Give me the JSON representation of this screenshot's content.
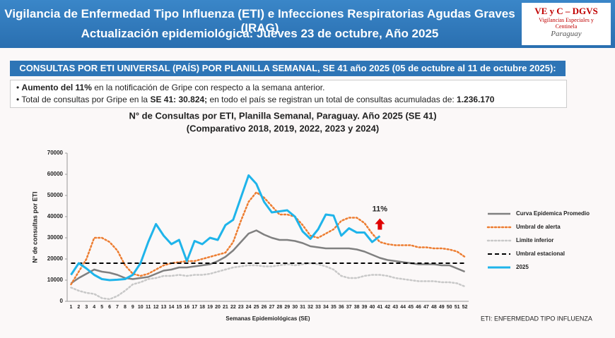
{
  "header": {
    "title": "Vigilancia de Enfermedad Tipo Influenza (ETI) e Infecciones Respiratorias Agudas Graves (IRAG)",
    "subtitle": "Actualización epidemiológica: Jueves 23 de octubre, Año 2025",
    "logo": [
      "VE y C – DGVS",
      "Vigilancias Especiales y",
      "Centinela",
      "Paraguay"
    ]
  },
  "banner": "CONSULTAS POR ETI UNIVERSAL (PAÍS) POR PLANILLA SEMANAL, SE 41 año 2025 (05 de octubre al 11 de octubre 2025):",
  "bullets": [
    [
      {
        "text": "Aumento del 11%",
        "bold": true
      },
      {
        "text": " en la notificación de Gripe con respecto a la semana anterior.",
        "bold": false
      }
    ],
    [
      {
        "text": "Total de consultas por Gripe en la ",
        "bold": false
      },
      {
        "text": "SE 41: 30.824;",
        "bold": true
      },
      {
        "text": " en todo el país se registran un total de consultas acumuladas de: ",
        "bold": false
      },
      {
        "text": "1.236.170",
        "bold": true
      }
    ]
  ],
  "chart_data": {
    "type": "line",
    "title": "N° de Consultas por ETI, Planilla Semanal, Paraguay. Año 2025  (SE 41)",
    "subtitle": "(Comparativo 2018, 2019, 2022, 2023 y 2024)",
    "x_label": "Semanas Epidemiológicas (SE)",
    "y_label": "N° de consultas por ETI",
    "categories": [
      "1",
      "2",
      "3",
      "4",
      "5",
      "6",
      "7",
      "8",
      "9",
      "10",
      "11",
      "12",
      "13",
      "14",
      "15",
      "16",
      "17",
      "18",
      "19",
      "20",
      "21",
      "22",
      "23",
      "24",
      "25",
      "26",
      "27",
      "28",
      "29",
      "30",
      "31",
      "32",
      "33",
      "34",
      "35",
      "36",
      "37",
      "38",
      "39",
      "40",
      "41",
      "42",
      "43",
      "44",
      "45",
      "46",
      "47",
      "48",
      "49",
      "50",
      "51",
      "52"
    ],
    "ylim": [
      0,
      70000
    ],
    "yticks": [
      0,
      10000,
      20000,
      30000,
      40000,
      50000,
      60000,
      70000
    ],
    "legend": "right",
    "annotation": "11%",
    "series": [
      {
        "name": "Curva Epidemica Promedio",
        "color": "#808080",
        "dash": "solid",
        "width": 2.5,
        "values": [
          8500,
          11000,
          13000,
          15000,
          14000,
          13500,
          12500,
          11000,
          10500,
          11000,
          11500,
          13000,
          14500,
          15000,
          16000,
          16000,
          16500,
          17000,
          17500,
          19000,
          21000,
          24000,
          28000,
          32000,
          33500,
          31500,
          30000,
          29000,
          29000,
          28500,
          27500,
          26000,
          25500,
          25000,
          25000,
          25000,
          25000,
          24500,
          23500,
          22000,
          20500,
          19500,
          19000,
          18500,
          18000,
          17500,
          17500,
          17500,
          17000,
          17000,
          15500,
          14000
        ]
      },
      {
        "name": "Umbral de alerta",
        "color": "#ed7d31",
        "dash": "dotted",
        "width": 2.5,
        "values": [
          8000,
          14000,
          20000,
          30000,
          30000,
          28000,
          24000,
          17000,
          13000,
          12000,
          13000,
          15000,
          17000,
          18000,
          18500,
          19000,
          19000,
          20000,
          21000,
          22000,
          23000,
          28000,
          38000,
          47000,
          51500,
          49000,
          45000,
          41000,
          41000,
          40000,
          36000,
          31000,
          30000,
          32000,
          34000,
          38000,
          39500,
          39500,
          37000,
          32000,
          28000,
          27000,
          26500,
          26500,
          26500,
          25500,
          25500,
          25000,
          25000,
          24500,
          23500,
          21000
        ]
      },
      {
        "name": "Limite inferior",
        "color": "#c8c8c8",
        "dash": "dotted",
        "width": 2.5,
        "values": [
          6500,
          5000,
          4000,
          3500,
          1500,
          1000,
          2500,
          5000,
          8000,
          9000,
          10500,
          11000,
          12000,
          12000,
          12500,
          12000,
          12500,
          12500,
          13000,
          14000,
          15000,
          16000,
          16500,
          17000,
          17000,
          16500,
          16500,
          17000,
          17500,
          17000,
          17500,
          18000,
          17500,
          16500,
          15000,
          12000,
          11000,
          11000,
          12000,
          12500,
          12500,
          12000,
          11000,
          10500,
          10000,
          9500,
          9500,
          9500,
          9000,
          9000,
          8500,
          7000
        ]
      },
      {
        "name": "Umbral estacional",
        "color": "#000000",
        "dash": "dashed",
        "width": 2,
        "values": [
          18000,
          18000,
          18000,
          18000,
          18000,
          18000,
          18000,
          18000,
          18000,
          18000,
          18000,
          18000,
          18000,
          18000,
          18000,
          18000,
          18000,
          18000,
          18000,
          18000,
          18000,
          18000,
          18000,
          18000,
          18000,
          18000,
          18000,
          18000,
          18000,
          18000,
          18000,
          18000,
          18000,
          18000,
          18000,
          18000,
          18000,
          18000,
          18000,
          18000,
          18000,
          18000,
          18000,
          18000,
          18000,
          18000,
          18000,
          18000,
          18000,
          18000,
          18000,
          18000
        ]
      },
      {
        "name": "2025",
        "color": "#1fb4ea",
        "dash": "solid",
        "width": 3,
        "values": [
          12500,
          18000,
          15500,
          12500,
          10500,
          10000,
          10200,
          10500,
          12500,
          18000,
          28000,
          36500,
          31000,
          27000,
          29000,
          19000,
          28500,
          27000,
          30000,
          29000,
          36000,
          38500,
          49000,
          59500,
          55500,
          47000,
          42000,
          42500,
          43000,
          40000,
          33000,
          29500,
          34000,
          41000,
          40500,
          31000,
          34500,
          32500,
          32500,
          28000,
          30824,
          null,
          null,
          null,
          null,
          null,
          null,
          null,
          null,
          null,
          null,
          null
        ]
      }
    ]
  },
  "footnote": "ETI: ENFERMEDAD TIPO INFLUENZA"
}
